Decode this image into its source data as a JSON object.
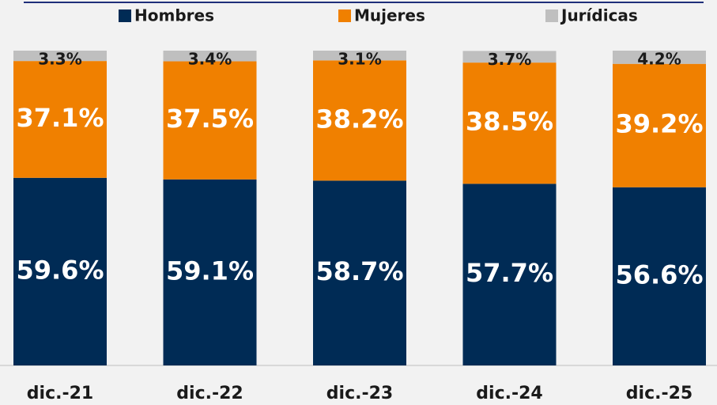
{
  "chart_data": {
    "type": "bar",
    "stacked": true,
    "categories": [
      "dic.-21",
      "dic.-22",
      "dic.-23",
      "dic.-24",
      "dic.-25"
    ],
    "series": [
      {
        "name": "Hombres",
        "color": "#002b55",
        "values": [
          59.6,
          59.1,
          58.7,
          57.7,
          56.6
        ],
        "value_labels": [
          "59.6%",
          "59.1%",
          "58.7%",
          "57.7%",
          "56.6%"
        ]
      },
      {
        "name": "Mujeres",
        "color": "#f08000",
        "values": [
          37.1,
          37.5,
          38.2,
          38.5,
          39.2
        ],
        "value_labels": [
          "37.1%",
          "37.5%",
          "38.2%",
          "38.5%",
          "39.2%"
        ]
      },
      {
        "name": "Jurídicas",
        "color": "#bfbfbf",
        "values": [
          3.3,
          3.4,
          3.1,
          3.7,
          4.2
        ],
        "value_labels": [
          "3.3%",
          "3.4%",
          "3.1%",
          "3.7%",
          "4.2%"
        ]
      }
    ],
    "legend": "top"
  }
}
